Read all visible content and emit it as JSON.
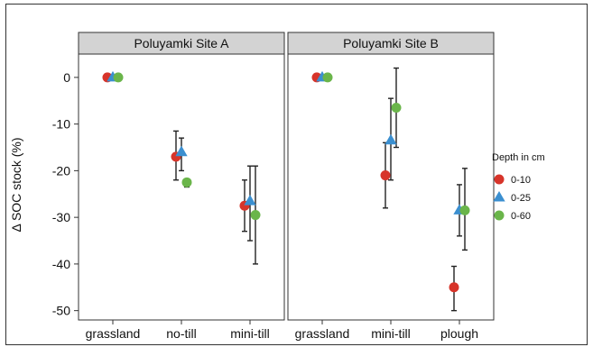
{
  "chart_data": {
    "type": "scatter",
    "ylabel": "Δ SOC stock (%)",
    "ylim": [
      -52,
      5
    ],
    "yticks": [
      0,
      -10,
      -20,
      -30,
      -40,
      -50
    ],
    "ytick_labels": [
      "0",
      "-10",
      "-20",
      "-30",
      "-40",
      "-50"
    ],
    "grid": false,
    "legend": {
      "title": "Depth in cm",
      "placement": "right"
    },
    "series_styles": [
      {
        "name": "0-10",
        "marker": "circle",
        "color": "#d7342a"
      },
      {
        "name": "0-25",
        "marker": "triangle",
        "color": "#3b8fd0"
      },
      {
        "name": "0-60",
        "marker": "circle",
        "color": "#6ab54a"
      }
    ],
    "panels": [
      {
        "title": "Poluyamki Site A",
        "categories": [
          "grassland",
          "no-till",
          "mini-till"
        ],
        "series": [
          {
            "name": "0-10",
            "values": [
              0,
              -17,
              -27.5
            ],
            "err_low": [
              null,
              -22,
              -33
            ],
            "err_high": [
              null,
              -11.5,
              -22
            ]
          },
          {
            "name": "0-25",
            "values": [
              0,
              -16,
              -26.5
            ],
            "err_low": [
              null,
              -20,
              -35
            ],
            "err_high": [
              null,
              -13,
              -19
            ]
          },
          {
            "name": "0-60",
            "values": [
              0,
              -22.5,
              -29.5
            ],
            "err_low": [
              null,
              -23.5,
              -40
            ],
            "err_high": [
              null,
              -22,
              -19
            ]
          }
        ]
      },
      {
        "title": "Poluyamki Site B",
        "categories": [
          "grassland",
          "mini-till",
          "plough"
        ],
        "series": [
          {
            "name": "0-10",
            "values": [
              0,
              -21,
              -45
            ],
            "err_low": [
              null,
              -28,
              -50
            ],
            "err_high": [
              null,
              -14,
              -40.5
            ]
          },
          {
            "name": "0-25",
            "values": [
              0,
              -13.5,
              -28.5
            ],
            "err_low": [
              null,
              -22,
              -34
            ],
            "err_high": [
              null,
              -4.5,
              -23
            ]
          },
          {
            "name": "0-60",
            "values": [
              0,
              -6.5,
              -28.5
            ],
            "err_low": [
              null,
              -15,
              -37
            ],
            "err_high": [
              null,
              2,
              -19.5
            ]
          }
        ]
      }
    ]
  }
}
